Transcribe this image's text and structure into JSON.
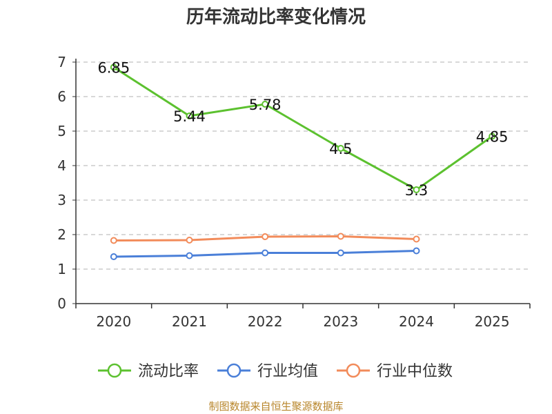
{
  "chart_data": {
    "type": "line",
    "title": "历年流动比率变化情况",
    "categories": [
      "2020",
      "2021",
      "2022",
      "2023",
      "2024",
      "2025"
    ],
    "ylim": [
      0,
      7
    ],
    "yticks": [
      "0",
      "1",
      "2",
      "3",
      "4",
      "5",
      "6",
      "7"
    ],
    "grid": true,
    "legend_position": "bottom",
    "series": [
      {
        "name": "流动比率",
        "color": "#5cc12f",
        "values": [
          6.85,
          5.44,
          5.78,
          4.5,
          3.3,
          4.85
        ],
        "labels": [
          "6.85",
          "5.44",
          "5.78",
          "4.5",
          "3.3",
          "4.85"
        ]
      },
      {
        "name": "行业均值",
        "color": "#4a7fd8",
        "values": [
          1.36,
          1.39,
          1.47,
          1.47,
          1.53,
          null
        ]
      },
      {
        "name": "行业中位数",
        "color": "#f28b5a",
        "values": [
          1.83,
          1.84,
          1.94,
          1.95,
          1.87,
          null
        ]
      }
    ]
  },
  "footer": {
    "source": "制图数据来自恒生聚源数据库"
  }
}
